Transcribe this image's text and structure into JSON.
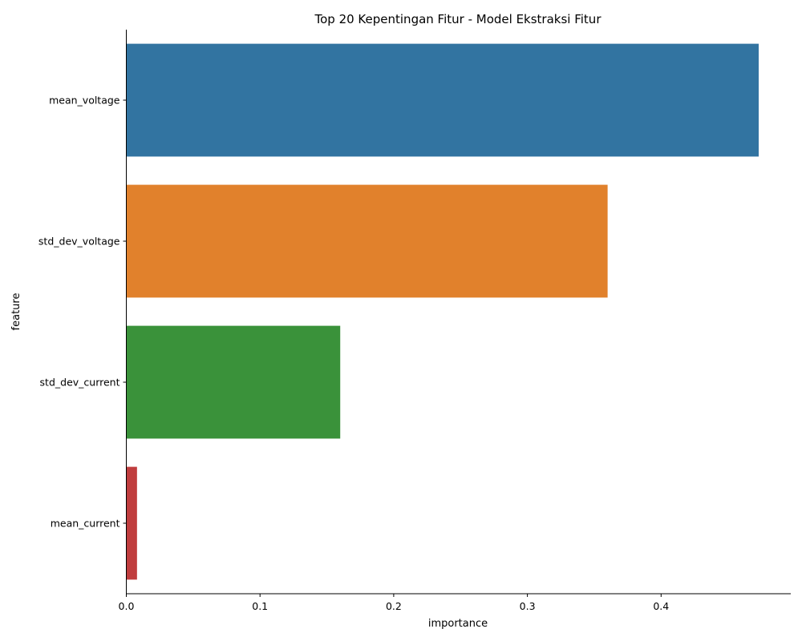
{
  "chart_data": {
    "type": "bar",
    "orientation": "horizontal",
    "title": "Top 20 Kepentingan Fitur - Model Ekstraksi Fitur",
    "xlabel": "importance",
    "ylabel": "feature",
    "categories": [
      "mean_voltage",
      "std_dev_voltage",
      "std_dev_current",
      "mean_current"
    ],
    "values": [
      0.473,
      0.36,
      0.16,
      0.008
    ],
    "colors": [
      "#3274a1",
      "#e1812c",
      "#3a923a",
      "#c03d3e"
    ],
    "xlim": [
      0,
      0.497
    ],
    "xticks": [
      "0.0",
      "0.1",
      "0.2",
      "0.3",
      "0.4"
    ],
    "grid": false,
    "legend": "none"
  }
}
